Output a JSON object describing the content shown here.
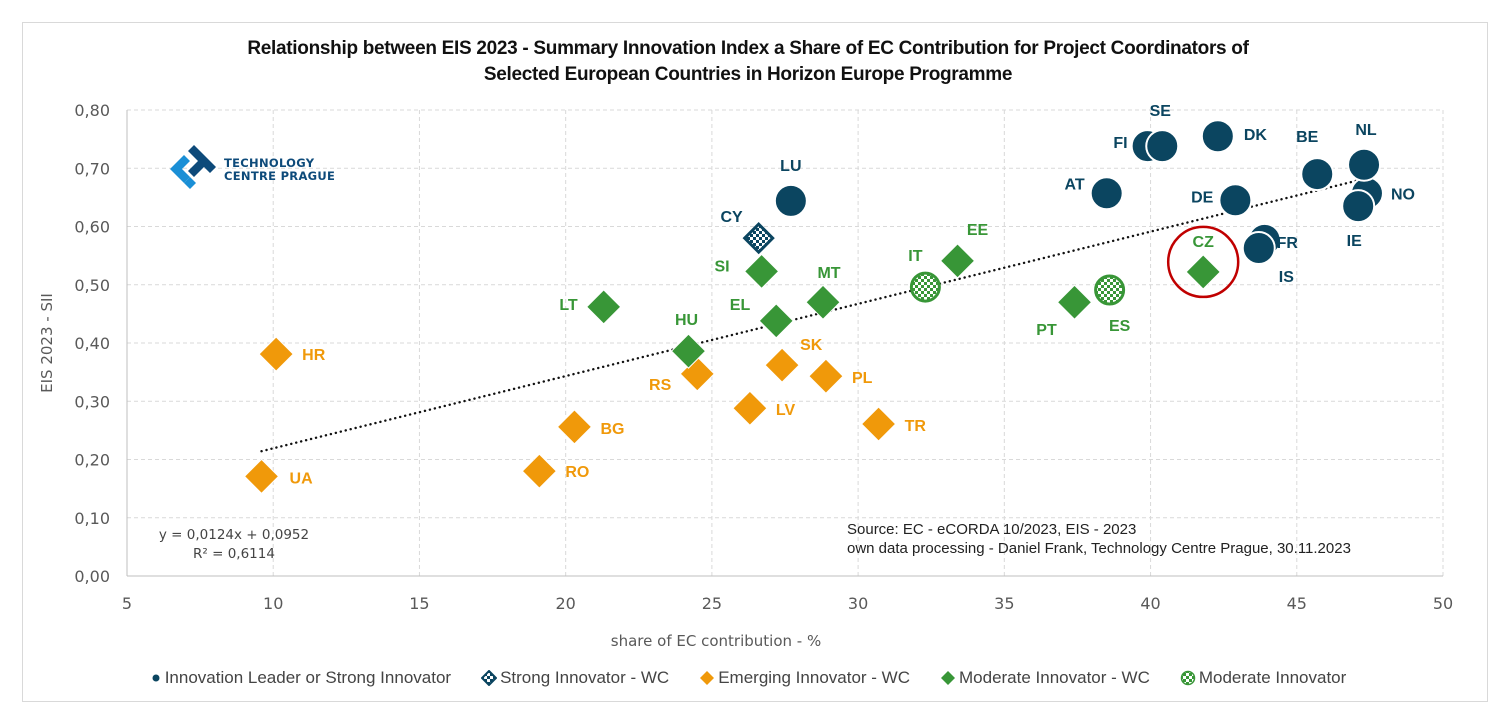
{
  "chart_data": {
    "type": "scatter",
    "title": "Relationship between EIS 2023 - Summary Innovation Index a Share of EC Contribution for Project Coordinators of Selected European Countries in Horizon Europe Programme",
    "title_lines": [
      "Relationship between EIS 2023 - Summary Innovation Index a Share of EC Contribution for Project Coordinators of",
      "Selected European Countries in Horizon Europe Programme"
    ],
    "xlabel": "share of EC contribution - %",
    "ylabel": "EIS 2023 - SII",
    "xlim": [
      5,
      50
    ],
    "ylim": [
      0,
      0.8
    ],
    "x_ticks": [
      "5",
      "10",
      "15",
      "20",
      "25",
      "30",
      "35",
      "40",
      "45",
      "50"
    ],
    "x_tick_values": [
      5,
      10,
      15,
      20,
      25,
      30,
      35,
      40,
      45,
      50
    ],
    "y_ticks": [
      "0,00",
      "0,10",
      "0,20",
      "0,30",
      "0,40",
      "0,50",
      "0,60",
      "0,70",
      "0,80"
    ],
    "y_tick_values": [
      0,
      0.1,
      0.2,
      0.3,
      0.4,
      0.5,
      0.6,
      0.7,
      0.8
    ],
    "grid": true,
    "legend_position": "bottom",
    "trendline": {
      "type": "linear",
      "slope": 0.0124,
      "intercept": 0.0952,
      "x_range": [
        9.6,
        47.4
      ],
      "equation_label": "y = 0,0124x + 0,0952",
      "r2_label": "R² = 0,6114"
    },
    "series": [
      {
        "name": "Innovation Leader or Strong Innovator",
        "marker": "circle",
        "color": "#0b4560",
        "points": [
          {
            "label": "LU",
            "x": 27.7,
            "y": 0.644
          },
          {
            "label": "AT",
            "x": 38.5,
            "y": 0.657
          },
          {
            "label": "FI",
            "x": 39.9,
            "y": 0.738
          },
          {
            "label": "SE",
            "x": 40.4,
            "y": 0.738
          },
          {
            "label": "DK",
            "x": 42.3,
            "y": 0.755
          },
          {
            "label": "DE",
            "x": 42.9,
            "y": 0.645
          },
          {
            "label": "FR",
            "x": 43.9,
            "y": 0.577
          },
          {
            "label": "IS",
            "x": 43.7,
            "y": 0.563
          },
          {
            "label": "BE",
            "x": 45.7,
            "y": 0.69
          },
          {
            "label": "NO",
            "x": 47.4,
            "y": 0.657
          },
          {
            "label": "NL",
            "x": 47.3,
            "y": 0.706
          },
          {
            "label": "IE",
            "x": 47.1,
            "y": 0.635
          }
        ]
      },
      {
        "name": "Strong Innovator - WC",
        "marker": "diamond-checker",
        "color": "#0b4560",
        "points": [
          {
            "label": "CY",
            "x": 26.6,
            "y": 0.58
          }
        ]
      },
      {
        "name": "Emerging Innovator - WC",
        "marker": "diamond",
        "color": "#f0990a",
        "points": [
          {
            "label": "UA",
            "x": 9.6,
            "y": 0.171
          },
          {
            "label": "HR",
            "x": 10.1,
            "y": 0.381
          },
          {
            "label": "RO",
            "x": 19.1,
            "y": 0.18
          },
          {
            "label": "BG",
            "x": 20.3,
            "y": 0.256
          },
          {
            "label": "RS",
            "x": 24.5,
            "y": 0.347
          },
          {
            "label": "LV",
            "x": 26.3,
            "y": 0.288
          },
          {
            "label": "SK",
            "x": 27.4,
            "y": 0.362
          },
          {
            "label": "PL",
            "x": 28.9,
            "y": 0.343
          },
          {
            "label": "TR",
            "x": 30.7,
            "y": 0.261
          }
        ]
      },
      {
        "name": "Moderate Innovator - WC",
        "marker": "diamond",
        "color": "#389637",
        "points": [
          {
            "label": "LT",
            "x": 21.3,
            "y": 0.462
          },
          {
            "label": "HU",
            "x": 24.2,
            "y": 0.386
          },
          {
            "label": "SI",
            "x": 26.7,
            "y": 0.523
          },
          {
            "label": "EL",
            "x": 27.2,
            "y": 0.438
          },
          {
            "label": "MT",
            "x": 28.8,
            "y": 0.47
          },
          {
            "label": "EE",
            "x": 33.4,
            "y": 0.541
          },
          {
            "label": "PT",
            "x": 37.4,
            "y": 0.47
          },
          {
            "label": "CZ",
            "x": 41.8,
            "y": 0.522
          }
        ]
      },
      {
        "name": "Moderate Innovator",
        "marker": "circle-checker",
        "color": "#389637",
        "points": [
          {
            "label": "IT",
            "x": 32.3,
            "y": 0.496
          },
          {
            "label": "ES",
            "x": 38.6,
            "y": 0.491
          }
        ]
      }
    ],
    "highlight": {
      "label": "CZ",
      "shape": "circle-outline",
      "color": "#c00000"
    },
    "annotations": [
      "Source: EC - eCORDA 10/2023, EIS - 2023",
      "own data processing - Daniel Frank, Technology Centre Prague, 30.11.2023"
    ]
  },
  "logo": {
    "line1": "TECHNOLOGY",
    "line2": "CENTRE PRAGUE",
    "colors": {
      "dark": "#0d4a7a",
      "light": "#1a8fd6"
    }
  },
  "legend": [
    {
      "label": "Innovation Leader or Strong Innovator",
      "marker": "circle",
      "color": "#0b4560"
    },
    {
      "label": "Strong Innovator - WC",
      "marker": "diamond-checker",
      "color": "#0b4560"
    },
    {
      "label": "Emerging Innovator - WC",
      "marker": "diamond",
      "color": "#f0990a"
    },
    {
      "label": "Moderate Innovator - WC",
      "marker": "diamond",
      "color": "#389637"
    },
    {
      "label": "Moderate Innovator",
      "marker": "circle-checker",
      "color": "#389637"
    }
  ]
}
